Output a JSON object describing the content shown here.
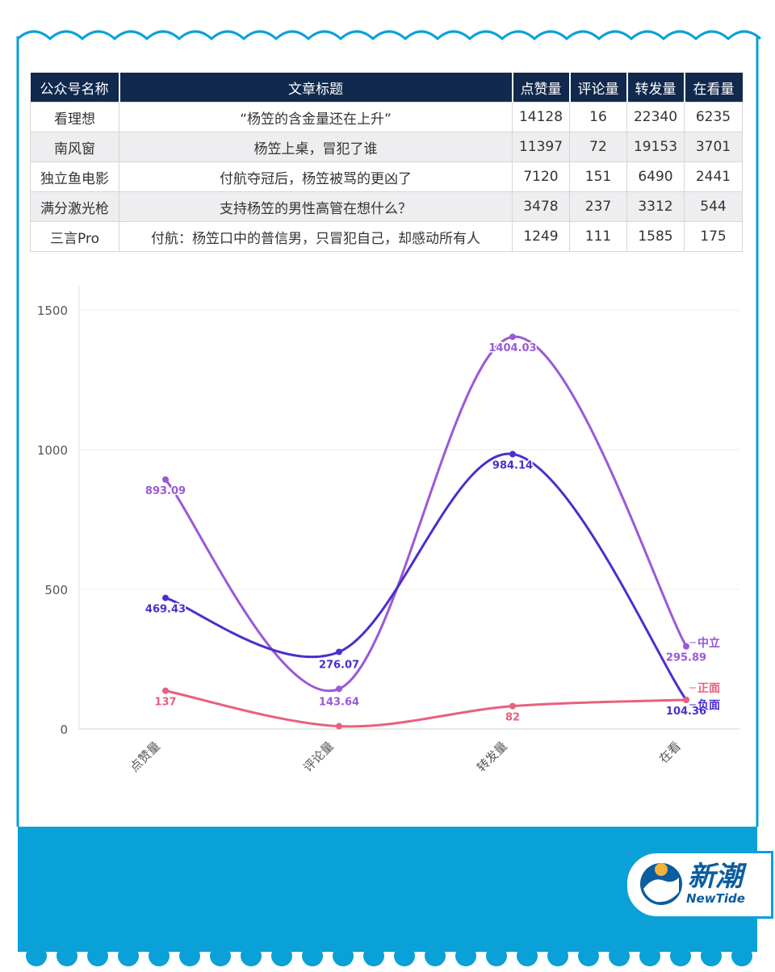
{
  "table": {
    "headers": [
      "公众号名称",
      "文章标题",
      "点赞量",
      "评论量",
      "转发量",
      "在看量"
    ],
    "rows": [
      [
        "看理想",
        "“杨笠的含金量还在上升”",
        "14128",
        "16",
        "22340",
        "6235"
      ],
      [
        "南风窗",
        "杨笠上桌，冒犯了谁",
        "11397",
        "72",
        "19153",
        "3701"
      ],
      [
        "独立鱼电影",
        "付航夺冠后，杨笠被骂的更凶了",
        "7120",
        "151",
        "6490",
        "2441"
      ],
      [
        "满分激光枪",
        "支持杨笠的男性高管在想什么？",
        "3478",
        "237",
        "3312",
        "544"
      ],
      [
        "三言Pro",
        "付航：杨笠口中的普信男，只冒犯自己，却感动所有人",
        "1249",
        "111",
        "1585",
        "175"
      ]
    ]
  },
  "chart_data": {
    "type": "line",
    "categories": [
      "点赞量",
      "评论量",
      "转发量",
      "在看"
    ],
    "ylim": [
      0,
      1500
    ],
    "yticks": [
      0,
      500,
      1000,
      1500
    ],
    "grid": true,
    "series": [
      {
        "name": "中立",
        "color": "#9b59d6",
        "values": [
          893.09,
          143.64,
          1404.03,
          295.89
        ],
        "labels": [
          "893.09",
          "143.64",
          "1404.03",
          "295.89"
        ]
      },
      {
        "name": "负面",
        "color": "#4a2fcf",
        "values": [
          469.43,
          276.07,
          984.14,
          104.36
        ],
        "labels": [
          "469.43",
          "276.07",
          "984.14",
          "104.36"
        ]
      },
      {
        "name": "正面",
        "color": "#e8607e",
        "values": [
          137,
          10,
          82,
          104.36
        ],
        "labels": [
          "137",
          "",
          "82",
          ""
        ]
      }
    ]
  },
  "brand": {
    "name": "新潮",
    "sub": "NewTide",
    "band_color": "#0aa0d8",
    "frame_color": "#0aa0d8"
  }
}
